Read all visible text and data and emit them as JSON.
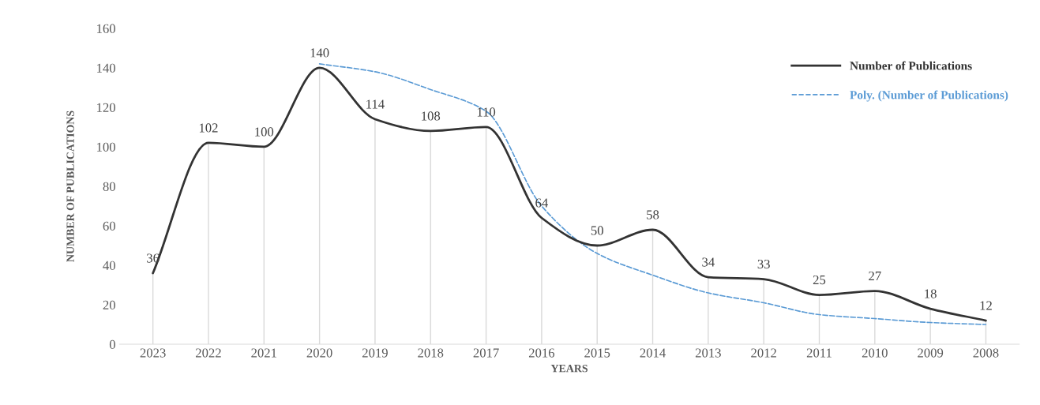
{
  "chart_data": {
    "type": "line",
    "xlabel": "YEARS",
    "ylabel": "NUMBER OF PUBLICATIONS",
    "categories": [
      "2023",
      "2022",
      "2021",
      "2020",
      "2019",
      "2018",
      "2017",
      "2016",
      "2015",
      "2014",
      "2013",
      "2012",
      "2011",
      "2010",
      "2009",
      "2008"
    ],
    "series": [
      {
        "name": "Number of Publications",
        "color": "#333333",
        "values": [
          36,
          102,
          100,
          140,
          114,
          108,
          110,
          64,
          50,
          58,
          34,
          33,
          25,
          27,
          18,
          12
        ],
        "value_labels": [
          "36",
          "102",
          "100",
          "140",
          "114",
          "108",
          "110",
          "64",
          "50",
          "58",
          "34",
          "33",
          "25",
          "27",
          "18",
          "12"
        ],
        "line_style": "solid"
      },
      {
        "name": "Poly. (Number of Publications)",
        "color": "#5b9bd5",
        "values": [
          null,
          null,
          null,
          142,
          138,
          129,
          118,
          70,
          46,
          35,
          26,
          21,
          15,
          13,
          11,
          10
        ],
        "line_style": "dashed"
      }
    ],
    "ylim": [
      0,
      160
    ],
    "yticks": [
      0,
      20,
      40,
      60,
      80,
      100,
      120,
      140,
      160
    ],
    "grid": "x",
    "legend": "top right"
  }
}
